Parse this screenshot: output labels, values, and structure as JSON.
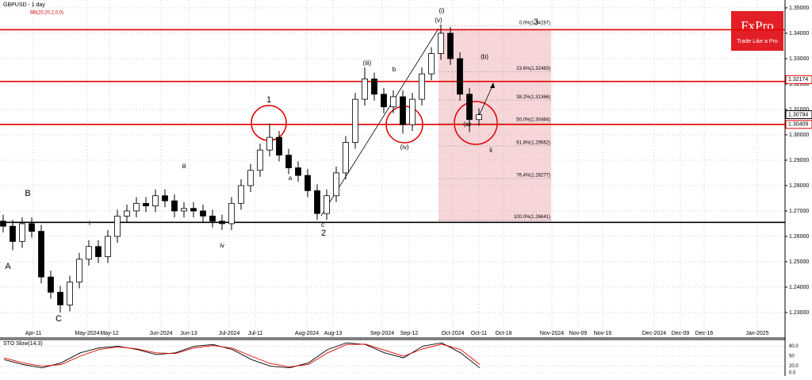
{
  "chart_data": {
    "type": "candlestick",
    "title": "GBPUSD - 1 day",
    "indicator": "BB(20,20,2,0,0)",
    "open": [
      1.266,
      1.264,
      1.258,
      1.265,
      1.262,
      1.244,
      1.238,
      1.233,
      1.242,
      1.251,
      1.256,
      1.252,
      1.26,
      1.268,
      1.27,
      1.273,
      1.272,
      1.276,
      1.274,
      1.27,
      1.271,
      1.27,
      1.268,
      1.266,
      1.265,
      1.273,
      1.28,
      1.286,
      1.294,
      1.299,
      1.292,
      1.287,
      1.284,
      1.278,
      1.269,
      1.276,
      1.285,
      1.297,
      1.314,
      1.322,
      1.316,
      1.311,
      1.315,
      1.304,
      1.314,
      1.324,
      1.332,
      1.34,
      1.33,
      1.316,
      1.306
    ],
    "high": [
      1.2685,
      1.2665,
      1.2675,
      1.2675,
      1.2645,
      1.2465,
      1.2405,
      1.2445,
      1.2535,
      1.2585,
      1.2585,
      1.2625,
      1.2705,
      1.2725,
      1.2755,
      1.2755,
      1.2785,
      1.2785,
      1.2765,
      1.2735,
      1.2735,
      1.2725,
      1.2705,
      1.2685,
      1.2755,
      1.2825,
      1.2885,
      1.2965,
      1.3045,
      1.3015,
      1.2945,
      1.2895,
      1.2865,
      1.2805,
      1.2785,
      1.2875,
      1.2995,
      1.3165,
      1.3265,
      1.3245,
      1.3185,
      1.3175,
      1.3175,
      1.3165,
      1.3265,
      1.3345,
      1.3434,
      1.3425,
      1.3325,
      1.3185,
      1.3104
    ],
    "low": [
      1.2615,
      1.2545,
      1.2555,
      1.2595,
      1.2415,
      1.2355,
      1.23,
      1.2305,
      1.2395,
      1.2485,
      1.2495,
      1.2495,
      1.2575,
      1.2655,
      1.2675,
      1.2695,
      1.2695,
      1.2715,
      1.2675,
      1.2675,
      1.2675,
      1.2655,
      1.2635,
      1.2625,
      1.2625,
      1.2705,
      1.2775,
      1.2835,
      1.2915,
      1.2895,
      1.2845,
      1.2815,
      1.2755,
      1.2665,
      1.2665,
      1.2735,
      1.2825,
      1.2945,
      1.3115,
      1.3135,
      1.3085,
      1.3085,
      1.3005,
      1.3015,
      1.3115,
      1.3215,
      1.3295,
      1.3275,
      1.3135,
      1.301,
      1.3035
    ],
    "close": [
      1.264,
      1.258,
      1.265,
      1.262,
      1.244,
      1.238,
      1.233,
      1.242,
      1.251,
      1.256,
      1.252,
      1.26,
      1.268,
      1.27,
      1.273,
      1.272,
      1.276,
      1.274,
      1.27,
      1.271,
      1.27,
      1.268,
      1.266,
      1.265,
      1.273,
      1.28,
      1.286,
      1.294,
      1.299,
      1.292,
      1.287,
      1.284,
      1.278,
      1.269,
      1.276,
      1.285,
      1.297,
      1.314,
      1.322,
      1.316,
      1.311,
      1.315,
      1.304,
      1.314,
      1.324,
      1.332,
      1.34,
      1.33,
      1.316,
      1.306,
      1.3079
    ],
    "ylim": [
      1.2203,
      1.3531
    ],
    "yticks": [
      {
        "value": 1.35,
        "label": "1.35000"
      },
      {
        "value": 1.34,
        "label": "1.34000"
      },
      {
        "value": 1.33,
        "label": "1.33000"
      },
      {
        "value": 1.32,
        "label": "1.32000"
      },
      {
        "value": 1.31,
        "label": "1.31000"
      },
      {
        "value": 1.3,
        "label": "1.30000"
      },
      {
        "value": 1.29,
        "label": "1.29000"
      },
      {
        "value": 1.28,
        "label": "1.28000"
      },
      {
        "value": 1.27,
        "label": "1.27000"
      },
      {
        "value": 1.26,
        "label": "1.26000"
      },
      {
        "value": 1.25,
        "label": "1.25000"
      },
      {
        "value": 1.24,
        "label": "1.24000"
      },
      {
        "value": 1.23,
        "label": "1.23000"
      }
    ],
    "price_tags": [
      1.32174,
      1.30794,
      1.30409
    ],
    "levels": [
      {
        "value": 1.3414,
        "color": "#e00000"
      },
      {
        "value": 1.321,
        "color": "#e00000"
      },
      {
        "value": 1.3041,
        "color": "#e00000"
      },
      {
        "value": 1.2655,
        "color": "#000000"
      }
    ],
    "fibonacci": [
      {
        "value": 1.34287,
        "label": "0.0%(1.34287)"
      },
      {
        "value": 1.32483,
        "label": "23.6%(1.32483)"
      },
      {
        "value": 1.31366,
        "label": "38.2%(1.31366)"
      },
      {
        "value": 1.30464,
        "label": "50.0%(1.30464)"
      },
      {
        "value": 1.29562,
        "label": "61.8%(1.29562)"
      },
      {
        "value": 1.28277,
        "label": "76.4%(1.28277)"
      },
      {
        "value": 1.26641,
        "label": "100.0%(1.26641)"
      }
    ],
    "xtick_labels": [
      "Apr-11",
      "May-2024",
      "May-12",
      "Jun-2024",
      "Jun-13",
      "Jul-2024",
      "Jul-11",
      "Aug-2024",
      "Aug-13",
      "Sep-2024",
      "Sep-12",
      "Oct-2024",
      "Oct-11",
      "Oct-18",
      "Nov-2024",
      "Nov-09",
      "Nov-16",
      "Dec-2024",
      "Dec-09",
      "Dec-16",
      "Jan-2025"
    ],
    "annotations": [
      "1",
      "2",
      "3",
      "A",
      "B",
      "C",
      "(b)",
      "(i)",
      "(v)",
      "(iii)",
      "(iv)",
      "c",
      "a",
      "b",
      "ii",
      "iii",
      "iv",
      "i",
      "(a)"
    ],
    "logo": {
      "brand": "FxPro",
      "tagline": "Trade Like a Pro"
    },
    "oscillator": {
      "title": "STO Slow(14,3)",
      "ylim": [
        0,
        100
      ],
      "yticks": [
        {
          "value": 80,
          "label": "80.0"
        },
        50,
        {
          "value": 20,
          "label": "20.0"
        },
        {
          "value": 0,
          "label": "0.0"
        }
      ],
      "series": [
        {
          "color": "#000000",
          "values": [
            40,
            25,
            15,
            30,
            60,
            75,
            80,
            70,
            55,
            60,
            80,
            85,
            70,
            40,
            20,
            15,
            30,
            70,
            90,
            85,
            60,
            45,
            80,
            90,
            60,
            15
          ]
        },
        {
          "color": "#e00000",
          "values": [
            45,
            30,
            20,
            25,
            50,
            70,
            78,
            72,
            60,
            58,
            75,
            82,
            74,
            50,
            28,
            18,
            25,
            60,
            85,
            86,
            68,
            50,
            72,
            86,
            70,
            25
          ]
        }
      ]
    }
  }
}
